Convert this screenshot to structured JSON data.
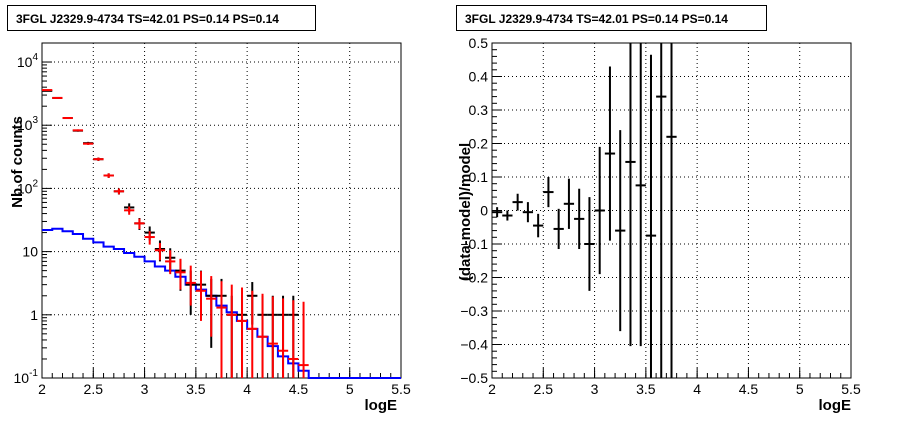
{
  "chart_data": [
    {
      "type": "scatter",
      "title": "3FGL J2329.9-4734 TS=42.01 PS=0.14 PS=0.14",
      "xlabel": "logE",
      "ylabel": "Nb of counts",
      "xlim": [
        2,
        5.5
      ],
      "ylim": [
        0.1,
        20000
      ],
      "yscale": "log",
      "grid": true,
      "xticks": [
        "2",
        "2.5",
        "3",
        "3.5",
        "4",
        "4.5",
        "5",
        "5.5"
      ],
      "yticks": [
        "10^{4}",
        "10^{3}",
        "10^{2}",
        "10",
        "1",
        "10^{-1}"
      ],
      "series": [
        {
          "style": "points with error bars",
          "color": "#000000",
          "x": [
            2.05,
            2.15,
            2.25,
            2.35,
            2.45,
            2.55,
            2.65,
            2.75,
            2.85,
            2.95,
            3.05,
            3.15,
            3.25,
            3.35,
            3.45,
            3.55,
            3.65,
            3.75,
            3.85,
            3.95,
            4.05,
            4.15,
            4.25,
            4.35,
            4.45
          ],
          "y": [
            3500,
            2700,
            1300,
            820,
            520,
            290,
            160,
            90,
            50,
            28,
            20,
            11,
            8,
            5,
            3,
            3,
            2,
            2,
            1,
            1,
            2,
            1,
            1,
            1,
            1
          ],
          "err_up": [
            60,
            55,
            40,
            30,
            25,
            18,
            13,
            10,
            8,
            6,
            5,
            4,
            3.3,
            2.6,
            2,
            2,
            1.7,
            1.7,
            1,
            1,
            1.3,
            1,
            1,
            1,
            1
          ],
          "err_down": [
            60,
            55,
            40,
            30,
            25,
            18,
            13,
            10,
            8,
            6,
            5,
            4,
            3.3,
            2.6,
            2,
            2,
            1.7,
            1.7,
            0.9,
            0.9,
            1.3,
            0.9,
            0.9,
            0.9,
            0.9
          ]
        },
        {
          "style": "points with error bars",
          "color": "#ff0000",
          "x": [
            2.05,
            2.15,
            2.25,
            2.35,
            2.45,
            2.55,
            2.65,
            2.75,
            2.85,
            2.95,
            3.05,
            3.15,
            3.25,
            3.35,
            3.45,
            3.55,
            3.65,
            3.75,
            3.85,
            3.95,
            4.05,
            4.15,
            4.25,
            4.35,
            4.45,
            4.55
          ],
          "y": [
            3600,
            2700,
            1300,
            830,
            510,
            290,
            160,
            90,
            45,
            28,
            17,
            10.5,
            7,
            4.7,
            3.2,
            2.4,
            1.8,
            1.3,
            1.0,
            0.8,
            0.6,
            0.45,
            0.35,
            0.27,
            0.2,
            0.16
          ],
          "err_up": [
            60,
            52,
            36,
            29,
            23,
            17,
            13,
            9.5,
            6.7,
            5.3,
            4.1,
            3.2,
            3.5,
            3,
            2.8,
            2.5,
            2.3,
            2.1,
            2,
            1.9,
            1.8,
            1.7,
            1.6,
            1.55,
            1.5,
            1.45
          ],
          "err_down": [
            60,
            52,
            36,
            29,
            23,
            17,
            13,
            9.5,
            6.7,
            5.3,
            4.1,
            3.2,
            2.6,
            2.2,
            1.8,
            1.6,
            1.35,
            1.2,
            0.9,
            0.7,
            0.55,
            0.41,
            0.32,
            0.25,
            0.19,
            0.15
          ]
        },
        {
          "style": "step line",
          "color": "#0000ff",
          "edges": [
            2.0,
            2.1,
            2.2,
            2.3,
            2.4,
            2.5,
            2.6,
            2.7,
            2.8,
            2.9,
            3.0,
            3.1,
            3.2,
            3.3,
            3.4,
            3.5,
            3.6,
            3.7,
            3.8,
            3.9,
            4.0,
            4.1,
            4.2,
            4.3,
            4.4,
            4.5,
            4.6,
            5.5
          ],
          "values": [
            22,
            23,
            21,
            19,
            16,
            14,
            12,
            11,
            9.5,
            8.3,
            7,
            5.8,
            5,
            4,
            3,
            2.5,
            2,
            1.4,
            1.1,
            0.8,
            0.6,
            0.45,
            0.32,
            0.22,
            0.17,
            0.13,
            0.1
          ]
        }
      ]
    },
    {
      "type": "scatter",
      "title": "3FGL J2329.9-4734 TS=42.01 PS=0.14 PS=0.14",
      "xlabel": "logE",
      "ylabel": "(data-model)/model",
      "xlim": [
        2,
        5.5
      ],
      "ylim": [
        -0.5,
        0.5
      ],
      "grid": true,
      "xticks": [
        "2",
        "2.5",
        "3",
        "3.5",
        "4",
        "4.5",
        "5",
        "5.5"
      ],
      "yticks": [
        "0.5",
        "0.4",
        "0.3",
        "0.2",
        "0.1",
        "0",
        "−0.1",
        "−0.2",
        "−0.3",
        "−0.4",
        "−0.5"
      ],
      "series": [
        {
          "style": "points with error bars",
          "color": "#000000",
          "x": [
            2.05,
            2.15,
            2.25,
            2.35,
            2.45,
            2.55,
            2.65,
            2.75,
            2.85,
            2.95,
            3.05,
            3.15,
            3.25,
            3.35,
            3.45,
            3.55,
            3.65,
            3.75
          ],
          "y": [
            -0.005,
            -0.015,
            0.025,
            -0.005,
            -0.045,
            0.055,
            -0.055,
            0.02,
            -0.025,
            -0.1,
            0.0,
            0.17,
            -0.06,
            0.145,
            0.075,
            -0.075,
            0.34,
            0.22
          ],
          "err": [
            0.015,
            0.015,
            0.025,
            0.03,
            0.035,
            0.045,
            0.06,
            0.075,
            0.09,
            0.14,
            0.19,
            0.26,
            0.3,
            0.55,
            0.48,
            0.54,
            0.9,
            1.0
          ]
        }
      ]
    }
  ]
}
